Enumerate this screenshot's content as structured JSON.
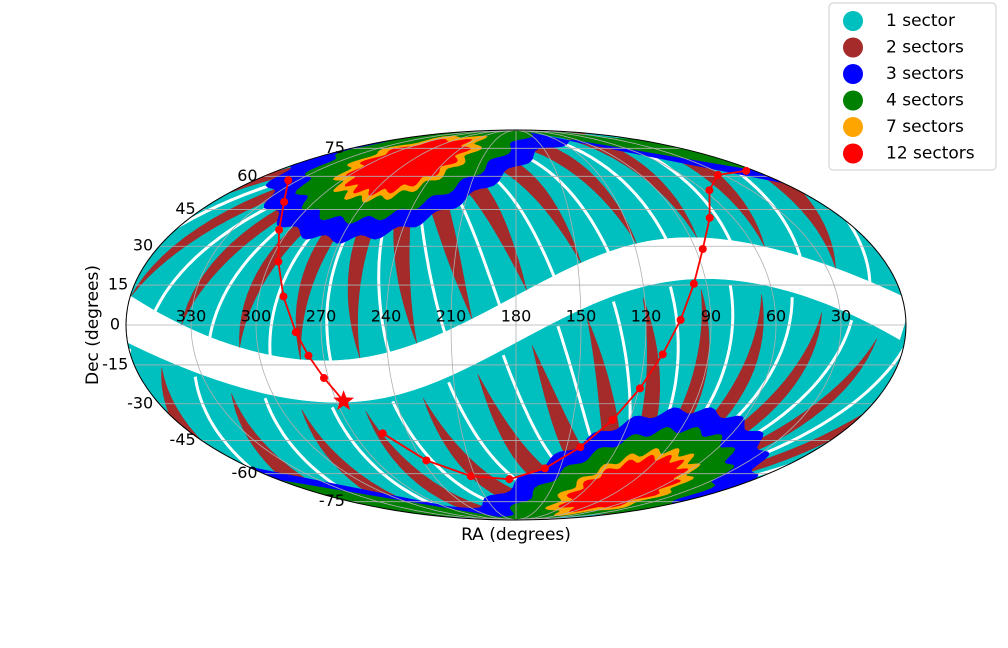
{
  "chart_data": {
    "type": "mollweide",
    "xlabel": "RA (degrees)",
    "ylabel": "Dec (degrees)",
    "xticks": [
      330,
      300,
      270,
      240,
      210,
      180,
      150,
      120,
      90,
      60,
      30
    ],
    "yticks": [
      -75,
      -60,
      -45,
      -30,
      -15,
      0,
      15,
      30,
      45,
      60,
      75
    ],
    "grid": true,
    "legend_position": "upper right",
    "legend": [
      {
        "label": "1 sector",
        "color": "#00bfbf"
      },
      {
        "label": "2 sectors",
        "color": "#a52a2a"
      },
      {
        "label": "3 sectors",
        "color": "#0000ff"
      },
      {
        "label": "4 sectors",
        "color": "#008000"
      },
      {
        "label": "7 sectors",
        "color": "#ffa500"
      },
      {
        "label": "12 sectors",
        "color": "#ff0000"
      }
    ],
    "series": [
      {
        "color": "#ff0000",
        "special_marker": "star",
        "x": [
          266.4,
          272.1,
          277.0,
          281.7,
          288.5,
          296.0,
          305.3,
          318.0,
          336.8,
          null,
          6.5,
          34.0,
          56.5,
          73.0,
          86.4,
          96.0,
          104.0,
          111.5,
          119.5,
          129.0,
          141.9,
          160.3,
          185.0,
          213.0,
          237.5,
          254.0
        ],
        "values": [
          -28.94,
          -20.0,
          -11.5,
          -2.7,
          10.7,
          24.0,
          36.6,
          48.3,
          58.1,
          null,
          62.7,
          60.7,
          53.5,
          41.5,
          28.9,
          15.5,
          1.9,
          -11.0,
          -24.0,
          -36.5,
          -47.9,
          -57.5,
          -62.7,
          -61.2,
          -53.8,
          -42.0
        ]
      }
    ]
  }
}
